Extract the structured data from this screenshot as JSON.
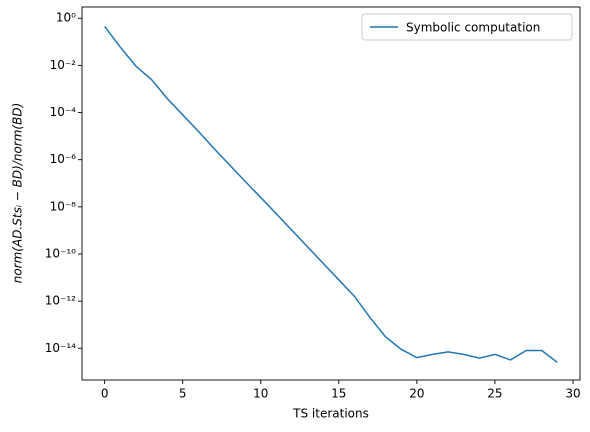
{
  "chart_data": {
    "type": "line",
    "xlabel": "TS iterations",
    "ylabel": "norm(AD.Stsᵢ − BD)/norm(BD)",
    "log_y": true,
    "grid": false,
    "legend": "upper right",
    "x": [
      0,
      1,
      2,
      3,
      4,
      5,
      6,
      7,
      8,
      9,
      10,
      11,
      12,
      13,
      14,
      15,
      16,
      17,
      18,
      19,
      20,
      21,
      22,
      23,
      24,
      25,
      26,
      27,
      28,
      29
    ],
    "series": [
      {
        "name": "Symbolic computation",
        "color": "#1f77b4",
        "values": [
          0.45,
          0.06,
          0.0093,
          0.0025,
          0.0004,
          8e-05,
          1.6e-05,
          3e-06,
          6e-07,
          1.2e-07,
          2.5e-08,
          5e-09,
          1e-09,
          2e-10,
          4e-11,
          8e-12,
          1.6e-12,
          2e-13,
          3e-14,
          9e-15,
          4e-15,
          5.5e-15,
          7e-15,
          5.5e-15,
          3.8e-15,
          5.5e-15,
          3.2e-15,
          8e-15,
          8e-15,
          2.5e-15
        ]
      }
    ],
    "xlim": [
      -1.45,
      30.45
    ],
    "xticks": [
      0,
      5,
      10,
      15,
      20,
      25,
      30
    ],
    "ylim": [
      4.5e-16,
      3
    ],
    "yticks": [
      {
        "value": 1,
        "label": "10⁰"
      },
      {
        "value": 0.01,
        "label": "10⁻²"
      },
      {
        "value": 0.0001,
        "label": "10⁻⁴"
      },
      {
        "value": 1e-06,
        "label": "10⁻⁶"
      },
      {
        "value": 1e-08,
        "label": "10⁻⁸"
      },
      {
        "value": 1e-10,
        "label": "10⁻¹⁰"
      },
      {
        "value": 1e-12,
        "label": "10⁻¹²"
      },
      {
        "value": 1e-14,
        "label": "10⁻¹⁴"
      }
    ]
  }
}
